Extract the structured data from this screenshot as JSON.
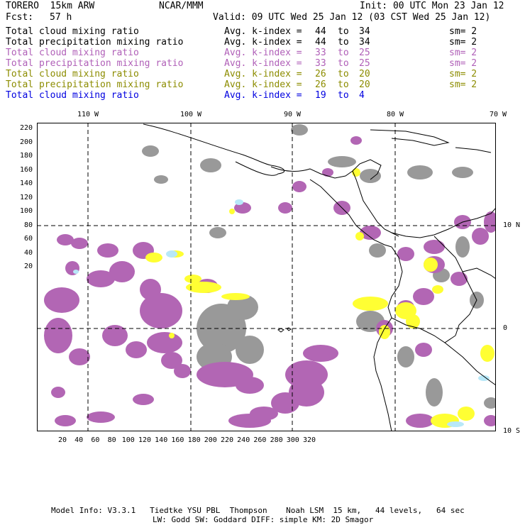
{
  "header": {
    "model": "TORERO  15km ARW",
    "org": "NCAR/MMM",
    "init": "Init: 00 UTC Mon 23 Jan 12",
    "fcst_label": "Fcst:",
    "fcst_value": "57 h",
    "valid": "Valid: 09 UTC Wed 25 Jan 12 (03 CST Wed 25 Jan 12)"
  },
  "legend": [
    {
      "field": "Total cloud mixing ratio",
      "index_label": "Avg. k-index =",
      "from": "44",
      "to": "to",
      "upto": "34",
      "sm": "sm= 2",
      "color": "#000000"
    },
    {
      "field": "Total precipitation mixing ratio",
      "index_label": "Avg. k-index =",
      "from": "44",
      "to": "to",
      "upto": "34",
      "sm": "sm= 2",
      "color": "#000000"
    },
    {
      "field": "Total cloud mixing ratio",
      "index_label": "Avg. k-index =",
      "from": "33",
      "to": "to",
      "upto": "25",
      "sm": "sm= 2",
      "color": "#b060b8"
    },
    {
      "field": "Total precipitation mixing ratio",
      "index_label": "Avg. k-index =",
      "from": "33",
      "to": "to",
      "upto": "25",
      "sm": "sm= 2",
      "color": "#b060b8"
    },
    {
      "field": "Total cloud mixing ratio",
      "index_label": "Avg. k-index =",
      "from": "26",
      "to": "to",
      "upto": "20",
      "sm": "sm= 2",
      "color": "#8c8c00"
    },
    {
      "field": "Total precipitation mixing ratio",
      "index_label": "Avg. k-index =",
      "from": "26",
      "to": "to",
      "upto": "20",
      "sm": "sm= 2",
      "color": "#8c8c00"
    },
    {
      "field": "Total cloud mixing ratio",
      "index_label": "Avg. k-index =",
      "from": "19",
      "to": "to",
      "upto": "4",
      "sm": "",
      "color": "#0000e0"
    }
  ],
  "axes": {
    "lon_labels": [
      "110 W",
      "100 W",
      "90 W",
      "80 W",
      "70 W"
    ],
    "lat_labels": [
      "10 N",
      "0",
      "10 S"
    ],
    "x_ticks": [
      "20",
      "40",
      "60",
      "80",
      "100",
      "120",
      "140",
      "160",
      "180",
      "200",
      "220",
      "240",
      "260",
      "280",
      "300",
      "320"
    ],
    "y_ticks": [
      "220",
      "200",
      "180",
      "160",
      "140",
      "120",
      "100",
      "80",
      "60",
      "40",
      "20"
    ]
  },
  "colors": {
    "purple": "#b266b4",
    "gray": "#999999",
    "yellow": "#ffff33",
    "lightblue": "#b8e8f8"
  },
  "footer": {
    "line1": "Model Info: V3.3.1   Tiedtke YSU PBL  Thompson    Noah LSM  15 km,   44 levels,   64 sec",
    "line2": "LW: Godd SW: Goddard DIFF: simple KM: 2D Smagor"
  }
}
